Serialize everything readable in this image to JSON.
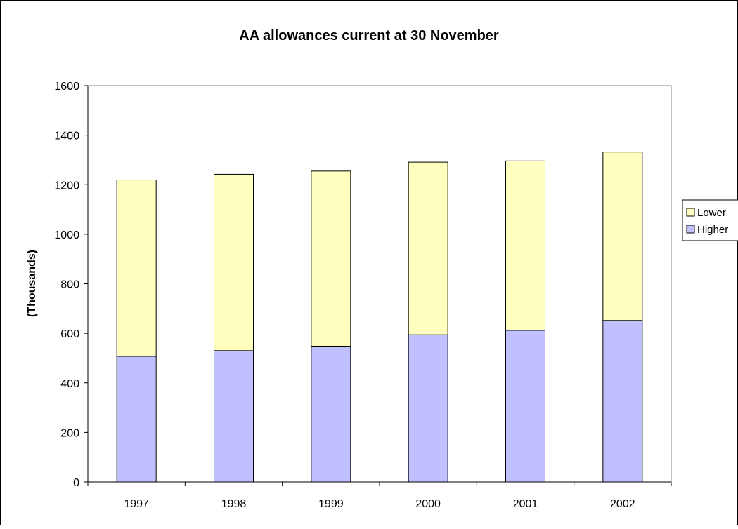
{
  "chart_data": {
    "type": "bar",
    "stacked": true,
    "title": "AA allowances current at 30 November",
    "xlabel": "",
    "ylabel": "(Thousands)",
    "categories": [
      "1997",
      "1998",
      "1999",
      "2000",
      "2001",
      "2002"
    ],
    "series": [
      {
        "name": "Higher",
        "values": [
          507,
          530,
          548,
          594,
          612,
          652
        ],
        "color": "#c0c0ff"
      },
      {
        "name": "Lower",
        "values": [
          712,
          712,
          707,
          697,
          684,
          680
        ],
        "color": "#ffffc0"
      }
    ],
    "ylim": [
      0,
      1600
    ],
    "yticks": [
      0,
      200,
      400,
      600,
      800,
      1000,
      1200,
      1400,
      1600
    ],
    "grid": false,
    "legend": {
      "placement": "right",
      "order": [
        "Lower",
        "Higher"
      ]
    }
  }
}
